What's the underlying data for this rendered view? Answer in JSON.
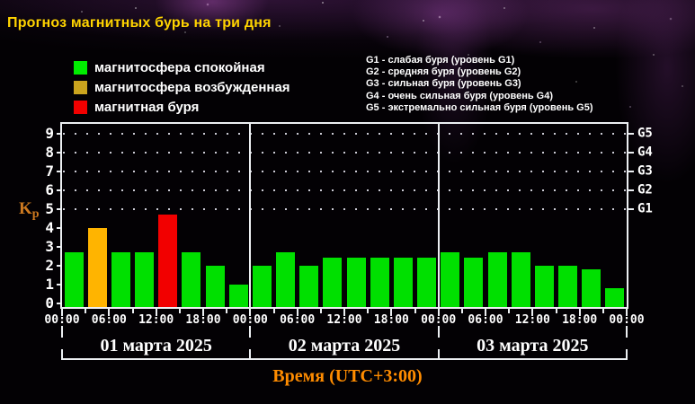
{
  "title": "Прогноз магнитных бурь на три дня",
  "legend": {
    "items": [
      {
        "state": "quiet",
        "label": "магнитосфера спокойная",
        "color": "#00ee00"
      },
      {
        "state": "excited",
        "label": "магнитосфера возбужденная",
        "color": "#cba41e"
      },
      {
        "state": "storm",
        "label": "магнитная буря",
        "color": "#f20000"
      }
    ]
  },
  "storm_scale_legend": [
    "G1 - слабая буря (уровень G1)",
    "G2 - средняя буря (уровень G2)",
    "G3 - сильная буря (уровень G3)",
    "G4 - очень сильная буря (уровень G4)",
    "G5 - экстремально сильная буря (уровень G5)"
  ],
  "chart_data": {
    "type": "bar",
    "title": "Прогноз магнитных бурь на три дня",
    "ylabel_main": "K",
    "ylabel_sub": "p",
    "xlabel": "Время (UTC+3:00)",
    "ylim": [
      0,
      9
    ],
    "yticks": [
      0,
      1,
      2,
      3,
      4,
      5,
      6,
      7,
      8,
      9
    ],
    "grid": "dotted horizontal lines at Kp 5-9 only",
    "grid_levels": [
      5,
      6,
      7,
      8,
      9
    ],
    "right_axis": [
      {
        "label": "G1",
        "kp": 5
      },
      {
        "label": "G2",
        "kp": 6
      },
      {
        "label": "G3",
        "kp": 7
      },
      {
        "label": "G4",
        "kp": 8
      },
      {
        "label": "G5",
        "kp": 9
      }
    ],
    "time_tick_labels": [
      "00:00",
      "06:00",
      "12:00",
      "18:00"
    ],
    "bar_interval_hours": 3,
    "state_colors": {
      "quiet": "#00e000",
      "excited": "#ffb400",
      "storm": "#f20000"
    },
    "days": [
      {
        "date": "01 марта 2025",
        "values": [
          2.7,
          4.0,
          2.7,
          2.7,
          4.7,
          2.7,
          2.0,
          1.0
        ],
        "states": [
          "quiet",
          "excited",
          "quiet",
          "quiet",
          "storm",
          "quiet",
          "quiet",
          "quiet"
        ]
      },
      {
        "date": "02 марта 2025",
        "values": [
          2.0,
          2.7,
          2.0,
          2.4,
          2.4,
          2.4,
          2.4,
          2.4
        ],
        "states": [
          "quiet",
          "quiet",
          "quiet",
          "quiet",
          "quiet",
          "quiet",
          "quiet",
          "quiet"
        ]
      },
      {
        "date": "03 марта 2025",
        "values": [
          2.7,
          2.4,
          2.7,
          2.7,
          2.0,
          2.0,
          1.8,
          0.8
        ],
        "states": [
          "quiet",
          "quiet",
          "quiet",
          "quiet",
          "quiet",
          "quiet",
          "quiet",
          "quiet"
        ]
      }
    ]
  }
}
